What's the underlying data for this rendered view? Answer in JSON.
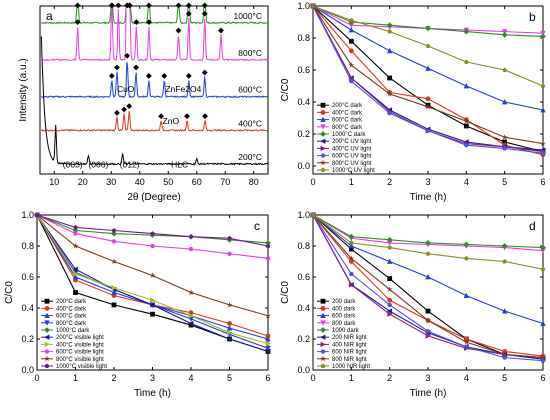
{
  "chart_data": [
    {
      "panel": "a",
      "type": "line",
      "xlabel": "2θ (Degree)",
      "ylabel": "Intensity (a.u.)",
      "xlim": [
        5,
        85
      ],
      "xticks": [
        10,
        20,
        30,
        40,
        50,
        60,
        70,
        80
      ],
      "series": [
        {
          "name": "1000°C",
          "color": "#2e8b22",
          "offset": 0.9,
          "peaks": [
            [
              18.2,
              0.25
            ],
            [
              30.2,
              0.3
            ],
            [
              35.6,
              0.7
            ],
            [
              36.5,
              0.4
            ],
            [
              43.2,
              0.22
            ],
            [
              53.6,
              0.18
            ],
            [
              57.2,
              0.28
            ],
            [
              62.8,
              0.3
            ]
          ]
        },
        {
          "name": "800°C",
          "color": "#e040e0",
          "offset": 0.68,
          "peaks": [
            [
              18.2,
              0.2
            ],
            [
              30.2,
              0.35
            ],
            [
              32.5,
              0.3
            ],
            [
              35.6,
              0.9
            ],
            [
              36.4,
              0.5
            ],
            [
              38.8,
              0.2
            ],
            [
              43.2,
              0.2
            ],
            [
              53.6,
              0.15
            ],
            [
              57.2,
              0.25
            ],
            [
              62.8,
              0.25
            ],
            [
              68.5,
              0.15
            ]
          ]
        },
        {
          "name": "600°C",
          "color": "#2040d0",
          "offset": 0.46,
          "peaks": [
            [
              30.2,
              0.1
            ],
            [
              32.0,
              0.15
            ],
            [
              35.6,
              0.22
            ],
            [
              38.7,
              0.15
            ],
            [
              43.2,
              0.1
            ],
            [
              48.6,
              0.1
            ],
            [
              57.2,
              0.1
            ],
            [
              62.8,
              0.12
            ]
          ]
        },
        {
          "name": "400°C",
          "color": "#d03a20",
          "offset": 0.26,
          "peaks": [
            [
              32.0,
              0.08
            ],
            [
              34.5,
              0.1
            ],
            [
              36.3,
              0.12
            ],
            [
              47.5,
              0.06
            ],
            [
              56.6,
              0.06
            ],
            [
              62.9,
              0.06
            ]
          ]
        },
        {
          "name": "200°C",
          "color": "#000000",
          "offset": 0.06,
          "peaks": [
            [
              10.5,
              0.22
            ],
            [
              22.0,
              0.05
            ],
            [
              34.0,
              0.06
            ],
            [
              60.0,
              0.03
            ]
          ]
        }
      ],
      "temperature_labels": [
        "1000°C",
        "800°C",
        "600°C",
        "400°C",
        "200°C"
      ],
      "annotations": [
        "(003)",
        "(006)",
        "(012)",
        "HLC",
        "CuO",
        "ZnFe2O4",
        "ZnO"
      ],
      "grid": false
    },
    {
      "panel": "b",
      "type": "line",
      "xlabel": "Time (h)",
      "ylabel": "C/C0",
      "xlim": [
        0,
        6
      ],
      "ylim": [
        -0.05,
        1.0
      ],
      "xticks": [
        0,
        1,
        2,
        3,
        4,
        5,
        6
      ],
      "yticks": [
        0.0,
        0.2,
        0.4,
        0.6,
        0.8,
        1.0
      ],
      "x": [
        0,
        1,
        2,
        3,
        4,
        5,
        6
      ],
      "legend_position": "bottom-left",
      "series": [
        {
          "name": "200°C dark",
          "color": "#000000",
          "values": [
            1.0,
            0.78,
            0.55,
            0.38,
            0.25,
            0.15,
            0.09
          ]
        },
        {
          "name": "400°C dark",
          "color": "#d03a20",
          "values": [
            1.0,
            0.72,
            0.46,
            0.42,
            0.29,
            0.13,
            0.07
          ]
        },
        {
          "name": "600°C dark",
          "color": "#2040d0",
          "values": [
            1.0,
            0.85,
            0.72,
            0.61,
            0.5,
            0.4,
            0.35
          ]
        },
        {
          "name": "800°C dark",
          "color": "#e040e0",
          "values": [
            1.0,
            0.88,
            0.87,
            0.86,
            0.85,
            0.84,
            0.83
          ]
        },
        {
          "name": "1000°C dark",
          "color": "#2e8b22",
          "values": [
            1.0,
            0.9,
            0.88,
            0.86,
            0.84,
            0.82,
            0.81
          ]
        },
        {
          "name": "200°C UV light",
          "color": "#1a1a8a",
          "values": [
            1.0,
            0.55,
            0.35,
            0.23,
            0.15,
            0.12,
            0.1
          ]
        },
        {
          "name": "400°C UV light",
          "color": "#8a1a8a",
          "values": [
            1.0,
            0.55,
            0.34,
            0.22,
            0.14,
            0.12,
            0.09
          ]
        },
        {
          "name": "600°C UV light",
          "color": "#5050e0",
          "values": [
            1.0,
            0.53,
            0.33,
            0.22,
            0.13,
            0.11,
            0.08
          ]
        },
        {
          "name": "800°C UV light",
          "color": "#7a3a1a",
          "values": [
            1.0,
            0.63,
            0.45,
            0.37,
            0.28,
            0.18,
            0.14
          ]
        },
        {
          "name": "1000°C UV light",
          "color": "#8a8a1a",
          "values": [
            1.0,
            0.91,
            0.84,
            0.75,
            0.65,
            0.6,
            0.5
          ]
        }
      ],
      "grid": false
    },
    {
      "panel": "c",
      "type": "line",
      "xlabel": "Time (h)",
      "ylabel": "C/C0",
      "xlim": [
        0,
        6
      ],
      "ylim": [
        0.0,
        1.0
      ],
      "xticks": [
        0,
        1,
        2,
        3,
        4,
        5,
        6
      ],
      "yticks": [
        0.0,
        0.2,
        0.4,
        0.6,
        0.8,
        1.0
      ],
      "x": [
        0,
        1,
        2,
        3,
        4,
        5,
        6
      ],
      "legend_position": "bottom-left",
      "series": [
        {
          "name": "200°C dark",
          "color": "#000000",
          "values": [
            1.0,
            0.5,
            0.42,
            0.36,
            0.29,
            0.2,
            0.12
          ]
        },
        {
          "name": "400°C dark",
          "color": "#d03a20",
          "values": [
            1.0,
            0.58,
            0.48,
            0.42,
            0.37,
            0.3,
            0.22
          ]
        },
        {
          "name": "600°C dark",
          "color": "#2040d0",
          "values": [
            1.0,
            0.6,
            0.5,
            0.42,
            0.35,
            0.27,
            0.2
          ]
        },
        {
          "name": "800°C dark",
          "color": "#3030e0",
          "values": [
            1.0,
            0.63,
            0.52,
            0.42,
            0.33,
            0.23,
            0.14
          ]
        },
        {
          "name": "1000°C dark",
          "color": "#2e8b22",
          "values": [
            1.0,
            0.9,
            0.88,
            0.87,
            0.86,
            0.84,
            0.82
          ]
        },
        {
          "name": "200°C visible light",
          "color": "#1a1a8a",
          "values": [
            1.0,
            0.65,
            0.52,
            0.42,
            0.3,
            0.2,
            0.12
          ]
        },
        {
          "name": "400°C visible light",
          "color": "#a0c020",
          "values": [
            1.0,
            0.62,
            0.53,
            0.45,
            0.35,
            0.24,
            0.17
          ]
        },
        {
          "name": "600°C visible light",
          "color": "#e040e0",
          "values": [
            1.0,
            0.88,
            0.83,
            0.8,
            0.78,
            0.75,
            0.72
          ]
        },
        {
          "name": "800°C visible light",
          "color": "#7a3a1a",
          "values": [
            1.0,
            0.8,
            0.7,
            0.61,
            0.5,
            0.42,
            0.35
          ]
        },
        {
          "name": "1000°C visible light",
          "color": "#6a1a8a",
          "values": [
            1.0,
            0.92,
            0.9,
            0.88,
            0.86,
            0.85,
            0.8
          ]
        }
      ],
      "grid": false
    },
    {
      "panel": "d",
      "type": "line",
      "xlabel": "Time (h)",
      "ylabel": "C/C0",
      "xlim": [
        0,
        6
      ],
      "ylim": [
        0.0,
        1.0
      ],
      "xticks": [
        0,
        1,
        2,
        3,
        4,
        5,
        6
      ],
      "yticks": [
        0.0,
        0.2,
        0.4,
        0.6,
        0.8,
        1.0
      ],
      "x": [
        0,
        1,
        2,
        3,
        4,
        5,
        6
      ],
      "legend_position": "bottom-left",
      "series": [
        {
          "name": "200 dark",
          "color": "#000000",
          "values": [
            1.0,
            0.78,
            0.59,
            0.38,
            0.2,
            0.1,
            0.08
          ]
        },
        {
          "name": "400 dark",
          "color": "#d03a20",
          "values": [
            1.0,
            0.7,
            0.45,
            0.32,
            0.2,
            0.12,
            0.09
          ]
        },
        {
          "name": "600 dark",
          "color": "#2040d0",
          "values": [
            1.0,
            0.8,
            0.7,
            0.6,
            0.48,
            0.38,
            0.3
          ]
        },
        {
          "name": "800 dark",
          "color": "#e040e0",
          "values": [
            1.0,
            0.85,
            0.82,
            0.81,
            0.8,
            0.79,
            0.77
          ]
        },
        {
          "name": "1000 dark",
          "color": "#2e8b22",
          "values": [
            1.0,
            0.86,
            0.84,
            0.82,
            0.81,
            0.8,
            0.79
          ]
        },
        {
          "name": "200 NIR light",
          "color": "#1a1a8a",
          "values": [
            1.0,
            0.55,
            0.38,
            0.24,
            0.15,
            0.1,
            0.07
          ]
        },
        {
          "name": "400 NIR light",
          "color": "#8a1a8a",
          "values": [
            1.0,
            0.55,
            0.36,
            0.22,
            0.14,
            0.1,
            0.08
          ]
        },
        {
          "name": "600 NIR light",
          "color": "#5050e0",
          "values": [
            1.0,
            0.62,
            0.42,
            0.25,
            0.15,
            0.08,
            0.06
          ]
        },
        {
          "name": "800 NIR light",
          "color": "#7a3a1a",
          "values": [
            1.0,
            0.72,
            0.52,
            0.32,
            0.18,
            0.1,
            0.08
          ]
        },
        {
          "name": "1000 NIR light",
          "color": "#8a8a1a",
          "values": [
            1.0,
            0.82,
            0.79,
            0.75,
            0.72,
            0.7,
            0.65
          ]
        }
      ],
      "grid": false
    }
  ]
}
